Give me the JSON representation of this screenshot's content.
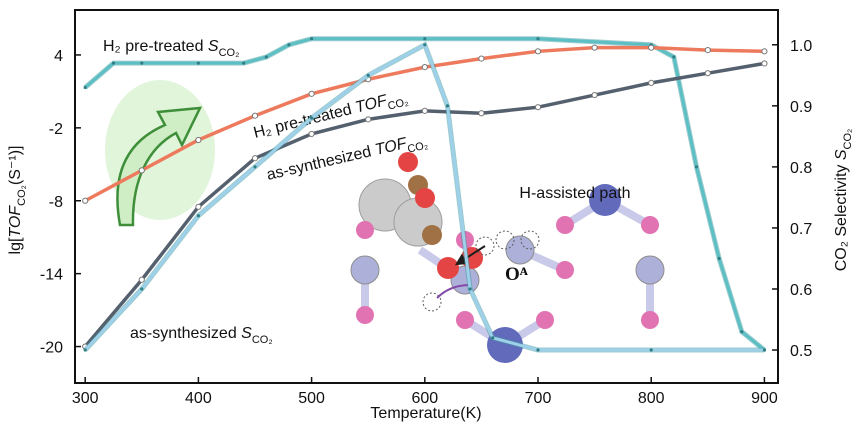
{
  "chart_data": {
    "type": "line",
    "xlabel": "Temperature(K)",
    "ylabel": {
      "main": "lg[",
      "italic": "TOF",
      "sub": "CO₂",
      "tail": "(S⁻¹)]"
    },
    "y2label": {
      "main": "CO₂ Selectivity ",
      "italic": "S",
      "sub": "CO₂"
    },
    "xlim": [
      291,
      912
    ],
    "xticks": [
      300,
      400,
      500,
      600,
      700,
      800,
      900
    ],
    "ylim": [
      -23,
      7.7
    ],
    "yticks": [
      4,
      -2,
      -8,
      -14,
      -20
    ],
    "y2lim": [
      0.446,
      1.057
    ],
    "y2ticks": [
      {
        "value": 1,
        "label": "1.0"
      },
      0.9,
      0.8,
      0.7,
      0.6,
      0.5
    ],
    "series": [
      {
        "label": {
          "main": "H₂ pre-treated ",
          "italic": "S",
          "sub": "CO₂"
        },
        "color": "#5bbfc4",
        "axis": "y2",
        "x": [
          300,
          325,
          350,
          400,
          440,
          460,
          480,
          500,
          600,
          700,
          800,
          820,
          840,
          860,
          880,
          900
        ],
        "values": [
          0.93,
          0.97,
          0.97,
          0.97,
          0.97,
          0.98,
          1.0,
          1.01,
          1.01,
          1.01,
          1.0,
          0.98,
          0.8,
          0.65,
          0.53,
          0.5
        ]
      },
      {
        "label": {
          "main": "H₂ pre-treated ",
          "italic": "TOF",
          "sub": "CO₂"
        },
        "color": "#ee7a5e",
        "axis": "y",
        "x": [
          300,
          350,
          400,
          450,
          500,
          550,
          600,
          650,
          700,
          750,
          800,
          850,
          900
        ],
        "values": [
          -8,
          -5.5,
          -3,
          -1,
          0.8,
          2.0,
          3.0,
          3.7,
          4.3,
          4.6,
          4.6,
          4.4,
          4.3
        ]
      },
      {
        "label": {
          "main": "as-synthesized ",
          "italic": "TOF",
          "sub": "CO₂"
        },
        "color": "#55606e",
        "axis": "y",
        "x": [
          300,
          350,
          400,
          450,
          500,
          550,
          600,
          650,
          700,
          750,
          800,
          850,
          900
        ],
        "values": [
          -20,
          -14.5,
          -8.5,
          -4.5,
          -2.5,
          -1.3,
          -0.6,
          -0.8,
          -0.3,
          0.7,
          1.7,
          2.5,
          3.3
        ]
      },
      {
        "label": {
          "main": "as-synthesized ",
          "italic": "S",
          "sub": "CO₂"
        },
        "color": "#9fd0ea",
        "axis": "y2",
        "x": [
          300,
          350,
          400,
          450,
          500,
          550,
          600,
          620,
          640,
          660,
          700,
          800,
          900
        ],
        "values": [
          0.5,
          0.6,
          0.72,
          0.8,
          0.88,
          0.95,
          1.0,
          0.9,
          0.6,
          0.52,
          0.5,
          0.5,
          0.5
        ]
      }
    ],
    "inset_title": "H-assisted path",
    "inset_atom": "Oᴬ"
  }
}
